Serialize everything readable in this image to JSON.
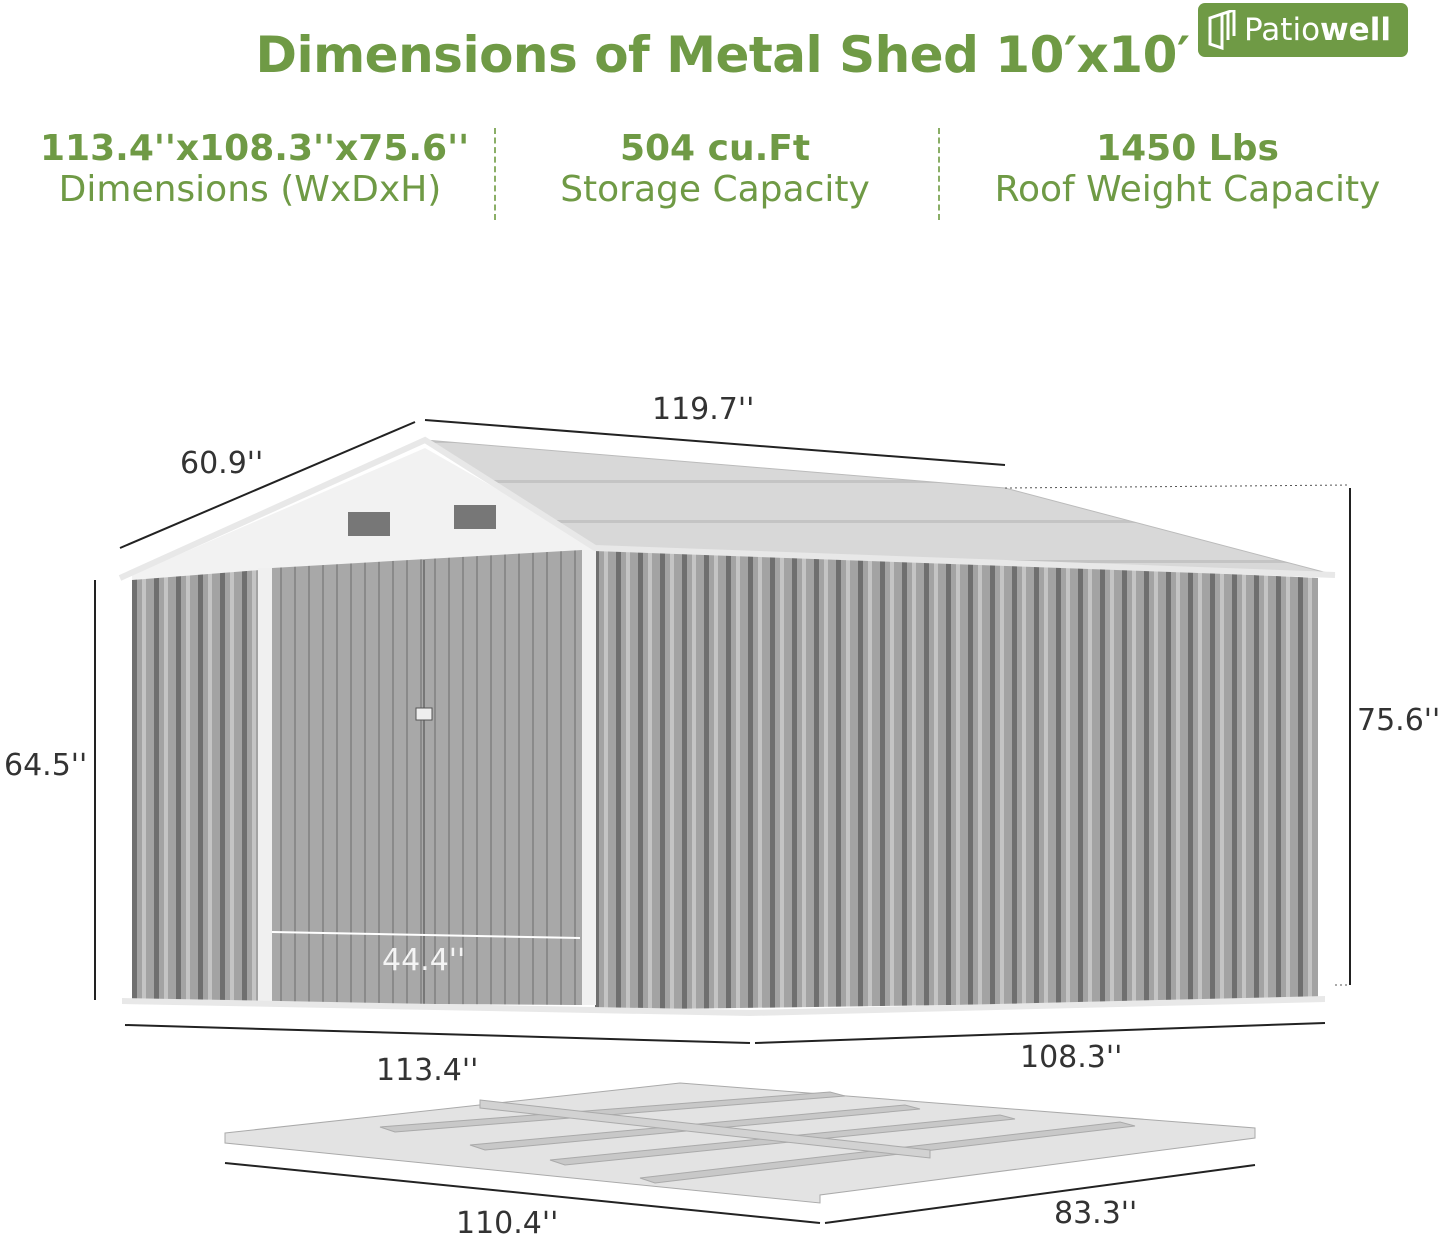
{
  "title": "Dimensions of Metal Shed 10′x10′",
  "logo": {
    "regular": "Patio",
    "bold": "well"
  },
  "specs": [
    {
      "value": "113.4''x108.3''x75.6''",
      "label": "Dimensions (WxDxH)"
    },
    {
      "value": "504 cu.Ft",
      "label": "Storage Capacity"
    },
    {
      "value": "1450 Lbs",
      "label": "Roof Weight Capacity"
    }
  ],
  "dimensions": {
    "roof_length": "119.7''",
    "roof_slope": "60.9''",
    "wall_height": "64.5''",
    "total_height": "75.6''",
    "door_width": "44.4''",
    "width": "113.4''",
    "depth": "108.3''",
    "base_length": "110.4''",
    "base_width": "83.3''"
  },
  "colors": {
    "brand_green": "#6f9a45",
    "shed_gray": "#9a9a9a"
  }
}
